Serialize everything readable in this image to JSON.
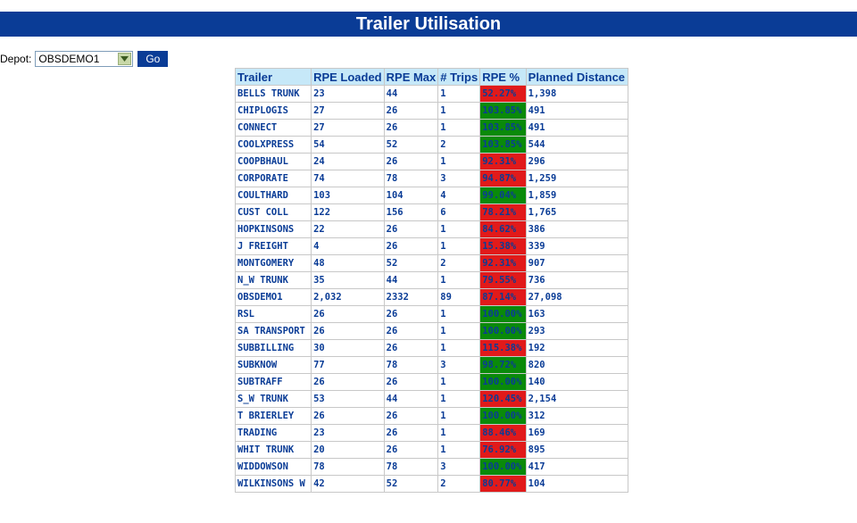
{
  "title": "Trailer Utilisation",
  "depot": {
    "label": "Depot:",
    "selected": "OBSDEMO1",
    "go_label": "Go"
  },
  "table": {
    "headers": [
      "Trailer",
      "RPE Loaded",
      "RPE Max",
      "# Trips",
      "RPE %",
      "Planned Distance"
    ],
    "rows": [
      {
        "trailer": "BELLS TRUNK",
        "loaded": "23",
        "max": "44",
        "trips": "1",
        "pct": "52.27%",
        "pct_value": 52.27,
        "distance": "1,398"
      },
      {
        "trailer": "CHIPLOGIS",
        "loaded": "27",
        "max": "26",
        "trips": "1",
        "pct": "103.85%",
        "pct_value": 103.85,
        "distance": "491"
      },
      {
        "trailer": "CONNECT",
        "loaded": "27",
        "max": "26",
        "trips": "1",
        "pct": "103.85%",
        "pct_value": 103.85,
        "distance": "491"
      },
      {
        "trailer": "COOLXPRESS",
        "loaded": "54",
        "max": "52",
        "trips": "2",
        "pct": "103.85%",
        "pct_value": 103.85,
        "distance": "544"
      },
      {
        "trailer": "COOPBHAUL",
        "loaded": "24",
        "max": "26",
        "trips": "1",
        "pct": "92.31%",
        "pct_value": 92.31,
        "distance": "296"
      },
      {
        "trailer": "CORPORATE",
        "loaded": "74",
        "max": "78",
        "trips": "3",
        "pct": "94.87%",
        "pct_value": 94.87,
        "distance": "1,259"
      },
      {
        "trailer": "COULTHARD",
        "loaded": "103",
        "max": "104",
        "trips": "4",
        "pct": "99.04%",
        "pct_value": 99.04,
        "distance": "1,859"
      },
      {
        "trailer": "CUST COLL",
        "loaded": "122",
        "max": "156",
        "trips": "6",
        "pct": "78.21%",
        "pct_value": 78.21,
        "distance": "1,765"
      },
      {
        "trailer": "HOPKINSONS",
        "loaded": "22",
        "max": "26",
        "trips": "1",
        "pct": "84.62%",
        "pct_value": 84.62,
        "distance": "386"
      },
      {
        "trailer": "J FREIGHT",
        "loaded": "4",
        "max": "26",
        "trips": "1",
        "pct": "15.38%",
        "pct_value": 15.38,
        "distance": "339"
      },
      {
        "trailer": "MONTGOMERY",
        "loaded": "48",
        "max": "52",
        "trips": "2",
        "pct": "92.31%",
        "pct_value": 92.31,
        "distance": "907"
      },
      {
        "trailer": "N_W TRUNK",
        "loaded": "35",
        "max": "44",
        "trips": "1",
        "pct": "79.55%",
        "pct_value": 79.55,
        "distance": "736"
      },
      {
        "trailer": "OBSDEMO1",
        "loaded": "2,032",
        "max": "2332",
        "trips": "89",
        "pct": "87.14%",
        "pct_value": 87.14,
        "distance": "27,098"
      },
      {
        "trailer": "RSL",
        "loaded": "26",
        "max": "26",
        "trips": "1",
        "pct": "100.00%",
        "pct_value": 100.0,
        "distance": "163"
      },
      {
        "trailer": "SA TRANSPORT",
        "loaded": "26",
        "max": "26",
        "trips": "1",
        "pct": "100.00%",
        "pct_value": 100.0,
        "distance": "293"
      },
      {
        "trailer": "SUBBILLING",
        "loaded": "30",
        "max": "26",
        "trips": "1",
        "pct": "115.38%",
        "pct_value": 115.38,
        "distance": "192"
      },
      {
        "trailer": "SUBKNOW",
        "loaded": "77",
        "max": "78",
        "trips": "3",
        "pct": "98.72%",
        "pct_value": 98.72,
        "distance": "820"
      },
      {
        "trailer": "SUBTRAFF",
        "loaded": "26",
        "max": "26",
        "trips": "1",
        "pct": "100.00%",
        "pct_value": 100.0,
        "distance": "140"
      },
      {
        "trailer": "S_W TRUNK",
        "loaded": "53",
        "max": "44",
        "trips": "1",
        "pct": "120.45%",
        "pct_value": 120.45,
        "distance": "2,154"
      },
      {
        "trailer": "T BRIERLEY",
        "loaded": "26",
        "max": "26",
        "trips": "1",
        "pct": "100.00%",
        "pct_value": 100.0,
        "distance": "312"
      },
      {
        "trailer": "TRADING",
        "loaded": "23",
        "max": "26",
        "trips": "1",
        "pct": "88.46%",
        "pct_value": 88.46,
        "distance": "169"
      },
      {
        "trailer": "WHIT TRUNK",
        "loaded": "20",
        "max": "26",
        "trips": "1",
        "pct": "76.92%",
        "pct_value": 76.92,
        "distance": "895"
      },
      {
        "trailer": "WIDDOWSON",
        "loaded": "78",
        "max": "78",
        "trips": "3",
        "pct": "100.00%",
        "pct_value": 100.0,
        "distance": "417"
      },
      {
        "trailer": "WILKINSONS W",
        "loaded": "42",
        "max": "52",
        "trips": "2",
        "pct": "80.77%",
        "pct_value": 80.77,
        "distance": "104"
      }
    ]
  },
  "colors": {
    "header_bar": "#0a3c96",
    "table_header": "#c6e8f8",
    "good": "#0a8a0a",
    "bad": "#e11a1a",
    "text": "#0a3c96"
  },
  "icons": {
    "dropdown": "chevron-down-icon"
  }
}
